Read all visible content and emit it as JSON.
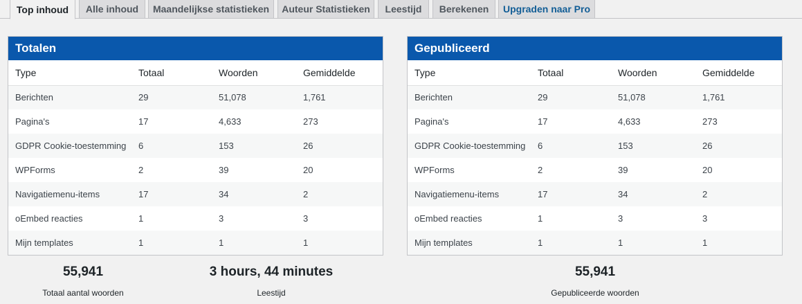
{
  "tabs": [
    {
      "label": "Top inhoud",
      "active": true
    },
    {
      "label": "Alle inhoud",
      "active": false
    },
    {
      "label": "Maandelijkse statistieken",
      "active": false
    },
    {
      "label": "Auteur Statistieken",
      "active": false
    },
    {
      "label": "Leestijd",
      "active": false
    },
    {
      "label": "Berekenen",
      "active": false
    },
    {
      "label": "Upgraden naar Pro",
      "active": false
    }
  ],
  "totals": {
    "title": "Totalen",
    "columns": [
      "Type",
      "Totaal",
      "Woorden",
      "Gemiddelde"
    ],
    "rows": [
      [
        "Berichten",
        "29",
        "51,078",
        "1,761"
      ],
      [
        "Pagina's",
        "17",
        "4,633",
        "273"
      ],
      [
        "GDPR Cookie-toestemming",
        "6",
        "153",
        "26"
      ],
      [
        "WPForms",
        "2",
        "39",
        "20"
      ],
      [
        "Navigatiemenu-items",
        "17",
        "34",
        "2"
      ],
      [
        "oEmbed reacties",
        "1",
        "3",
        "3"
      ],
      [
        "Mijn templates",
        "1",
        "1",
        "1"
      ]
    ]
  },
  "published": {
    "title": "Gepubliceerd",
    "columns": [
      "Type",
      "Totaal",
      "Woorden",
      "Gemiddelde"
    ],
    "rows": [
      [
        "Berichten",
        "29",
        "51,078",
        "1,761"
      ],
      [
        "Pagina's",
        "17",
        "4,633",
        "273"
      ],
      [
        "GDPR Cookie-toestemming",
        "6",
        "153",
        "26"
      ],
      [
        "WPForms",
        "2",
        "39",
        "20"
      ],
      [
        "Navigatiemenu-items",
        "17",
        "34",
        "2"
      ],
      [
        "oEmbed reacties",
        "1",
        "3",
        "3"
      ],
      [
        "Mijn templates",
        "1",
        "1",
        "1"
      ]
    ]
  },
  "summary": {
    "total_words": {
      "value": "55,941",
      "label": "Totaal aantal woorden"
    },
    "reading_time": {
      "value": "3 hours, 44 minutes",
      "label": "Leestijd"
    },
    "published_words": {
      "value": "55,941",
      "label": "Gepubliceerde woorden"
    }
  },
  "colors": {
    "header_blue": "#0a58ac",
    "pro_link": "#135e96"
  }
}
